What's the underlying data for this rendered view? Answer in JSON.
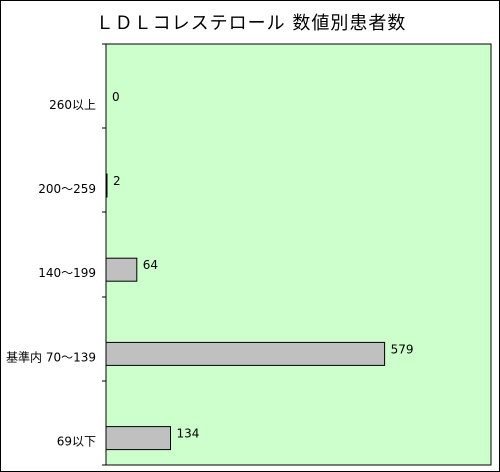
{
  "chart_data": {
    "type": "bar",
    "orientation": "horizontal",
    "title": "ＬＤＬコレステロール 数値別患者数",
    "categories": [
      "260以上",
      "200～259",
      "140～199",
      "基準内 70～139",
      "69以下"
    ],
    "values": [
      0,
      2,
      64,
      579,
      134
    ],
    "xlim": [
      0,
      800
    ],
    "grid": false,
    "legend": "none",
    "colors": {
      "plot_background": "#ccffcc",
      "bar_fill": "#c0c0c0",
      "bar_stroke": "#000000"
    }
  }
}
